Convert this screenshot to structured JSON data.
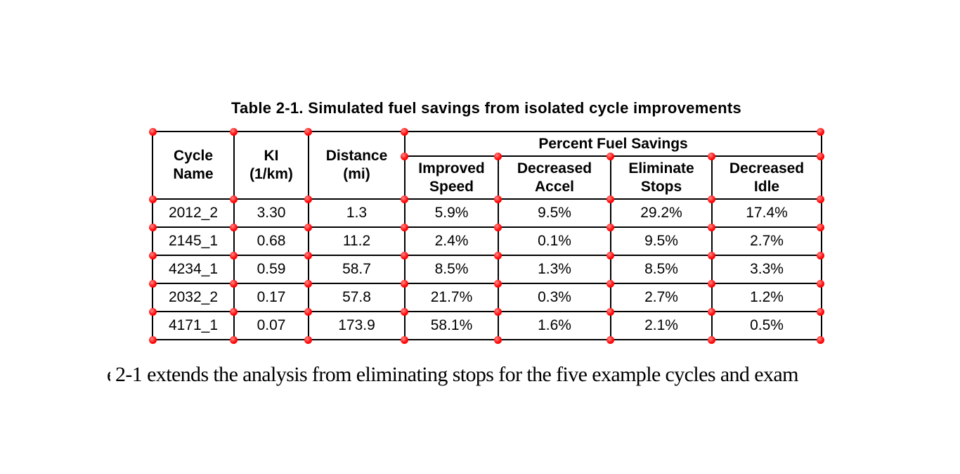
{
  "caption": "Table 2-1. Simulated fuel savings from isolated cycle improvements",
  "table": {
    "headers": {
      "cycle_name": "Cycle\nName",
      "ki": "KI\n(1/km)",
      "distance": "Distance\n(mi)",
      "group": "Percent Fuel Savings",
      "improved_speed": "Improved\nSpeed",
      "decreased_accel": "Decreased\nAccel",
      "eliminate_stops": "Eliminate\nStops",
      "decreased_idle": "Decreased\nIdle"
    },
    "rows": [
      [
        "2012_2",
        "3.30",
        "1.3",
        "5.9%",
        "9.5%",
        "29.2%",
        "17.4%"
      ],
      [
        "2145_1",
        "0.68",
        "11.2",
        "2.4%",
        "0.1%",
        "9.5%",
        "2.7%"
      ],
      [
        "4234_1",
        "0.59",
        "58.7",
        "8.5%",
        "1.3%",
        "8.5%",
        "3.3%"
      ],
      [
        "2032_2",
        "0.17",
        "57.8",
        "21.7%",
        "0.3%",
        "2.7%",
        "1.2%"
      ],
      [
        "4171_1",
        "0.07",
        "173.9",
        "58.1%",
        "1.6%",
        "2.1%",
        "0.5%"
      ]
    ]
  },
  "body_text": {
    "clipped_prefix": "e",
    "text": "2-1 extends the analysis from eliminating stops for the five example cycles and exam"
  },
  "colors": {
    "marker_red": "#ff0000",
    "border_black": "#000000",
    "background": "#ffffff",
    "text": "#000000"
  }
}
